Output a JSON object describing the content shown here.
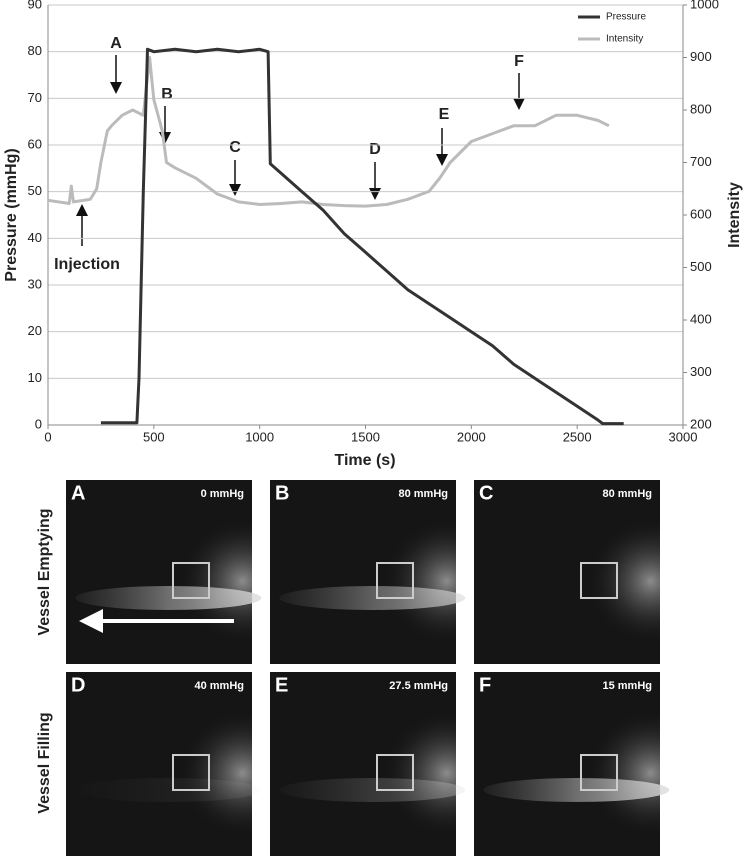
{
  "chart_data": {
    "type": "line",
    "xlabel": "Time (s)",
    "ylabel": "Pressure (mmHg)",
    "y2label": "Intensity",
    "xlim": [
      0,
      3000
    ],
    "xticks": [
      0,
      500,
      1000,
      1500,
      2000,
      2500,
      3000
    ],
    "ylim": [
      0,
      90
    ],
    "yticks": [
      0,
      10,
      20,
      30,
      40,
      50,
      60,
      70,
      80,
      90
    ],
    "y2lim": [
      200,
      1000
    ],
    "y2ticks": [
      200,
      300,
      400,
      500,
      600,
      700,
      800,
      900,
      1000
    ],
    "grid": true,
    "legend": "top-right",
    "series": [
      {
        "name": "Pressure",
        "color": "#333333",
        "x": [
          250,
          300,
          400,
          420,
          430,
          450,
          470,
          500,
          600,
          700,
          800,
          900,
          1000,
          1040,
          1050,
          1100,
          1200,
          1300,
          1400,
          1500,
          1600,
          1700,
          1800,
          1900,
          2000,
          2100,
          2200,
          2300,
          2400,
          2500,
          2600,
          2620,
          2720
        ],
        "values": [
          0.5,
          0.5,
          0.5,
          0.5,
          10,
          50,
          80.5,
          80,
          80.5,
          80,
          80.5,
          80,
          80.5,
          80,
          56,
          54,
          50,
          46,
          41,
          37,
          33,
          29,
          26,
          23,
          20,
          17,
          13,
          10,
          7,
          4,
          1,
          0.3,
          0.3
        ]
      },
      {
        "name": "Intensity",
        "color": "#bbbbbb",
        "axis": "y2",
        "x": [
          0,
          100,
          110,
          120,
          200,
          230,
          250,
          280,
          300,
          350,
          400,
          450,
          480,
          500,
          540,
          560,
          600,
          700,
          800,
          900,
          1000,
          1100,
          1200,
          1300,
          1400,
          1500,
          1600,
          1700,
          1800,
          1850,
          1900,
          2000,
          2100,
          2200,
          2300,
          2400,
          2500,
          2600,
          2650
        ],
        "values": [
          628,
          622,
          655,
          625,
          630,
          650,
          700,
          760,
          770,
          790,
          800,
          790,
          900,
          820,
          760,
          700,
          690,
          670,
          640,
          625,
          620,
          622,
          625,
          620,
          618,
          617,
          620,
          630,
          645,
          670,
          700,
          740,
          755,
          770,
          770,
          790,
          790,
          780,
          770
        ]
      }
    ],
    "annotations": [
      "A",
      "B",
      "C",
      "D",
      "E",
      "F",
      "Injection"
    ]
  },
  "panels": {
    "rows": [
      "Vessel Emptying",
      "Vessel Filling"
    ],
    "images": [
      {
        "letter": "A",
        "pressure": "0 mmHg"
      },
      {
        "letter": "B",
        "pressure": "80 mmHg"
      },
      {
        "letter": "C",
        "pressure": "80 mmHg"
      },
      {
        "letter": "D",
        "pressure": "40 mmHg"
      },
      {
        "letter": "E",
        "pressure": "27.5 mmHg"
      },
      {
        "letter": "F",
        "pressure": "15 mmHg"
      }
    ]
  }
}
